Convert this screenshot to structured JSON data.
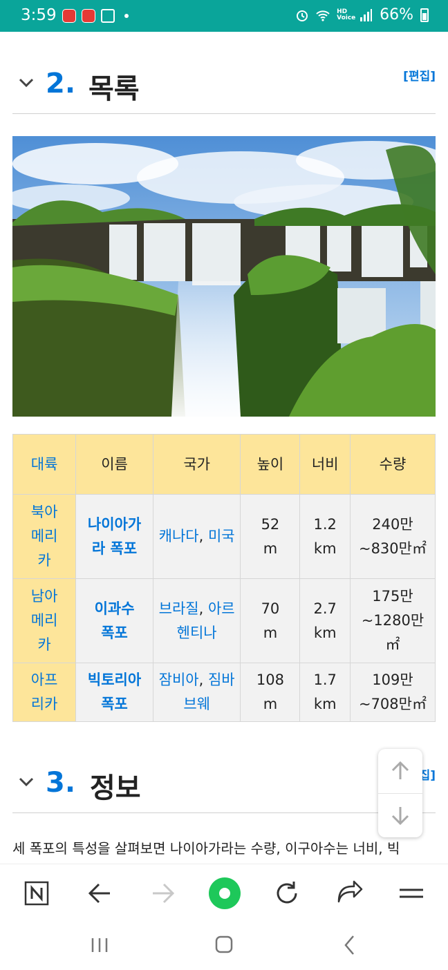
{
  "status_bar": {
    "time": "3:59",
    "network_label": "HD Voice",
    "battery": "66%"
  },
  "sections": [
    {
      "number": "2.",
      "title": "목록",
      "edit": "[편집]"
    },
    {
      "number": "3.",
      "title": "정보",
      "edit": "[편집]"
    }
  ],
  "image": {
    "description_icon": "waterfall-photo"
  },
  "table": {
    "headers": [
      "대륙",
      "이름",
      "국가",
      "높이",
      "너비",
      "수량"
    ],
    "rows": [
      {
        "continent": "북아메리카",
        "name": "나이아가라 폭포",
        "country1": "캐나다",
        "country2": "미국",
        "height": "52 m",
        "width": "1.2 km",
        "flow": "240만~830만㎡"
      },
      {
        "continent": "남아메리카",
        "name": "이과수 폭포",
        "country1": "브라질",
        "country2": "아르헨티나",
        "height": "70 m",
        "width": "2.7 km",
        "flow": "175만~1280만㎡"
      },
      {
        "continent": "아프리카",
        "name": "빅토리아 폭포",
        "country1": "잠비아",
        "country2": "짐바브웨",
        "height": "108 m",
        "width": "1.7 km",
        "flow": "109만~708만㎡"
      }
    ]
  },
  "body_text": "세 폭포의 특성을 살펴보면 나이아가라는 수량, 이구아수는 너비, 빅",
  "colors": {
    "accent": "#0275d8",
    "status_bar": "#0aa59a",
    "table_header": "#fde59a",
    "go_button": "#1ec85a"
  }
}
